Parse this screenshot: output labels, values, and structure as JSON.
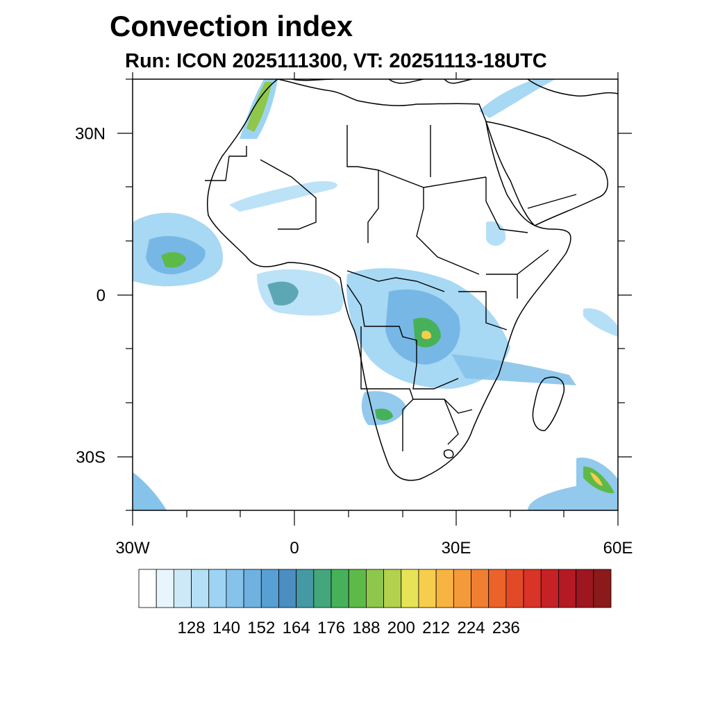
{
  "title": "Convection index",
  "subtitle": "Run: ICON 2025111300,  VT: 20251113-18UTC",
  "map": {
    "lon_range": [
      -30,
      60
    ],
    "lat_range": [
      -40,
      40
    ],
    "x_ticks": [
      {
        "lon": -30,
        "label": "30W"
      },
      {
        "lon": 0,
        "label": "0"
      },
      {
        "lon": 30,
        "label": "30E"
      },
      {
        "lon": 60,
        "label": "60E"
      }
    ],
    "y_ticks": [
      {
        "lat": 30,
        "label": "30N"
      },
      {
        "lat": 0,
        "label": "0"
      },
      {
        "lat": -30,
        "label": "30S"
      }
    ]
  },
  "colorbar": {
    "colors": [
      "#ffffff",
      "#e8f5fc",
      "#cde9f8",
      "#b5dff6",
      "#9dd4f3",
      "#86c3ea",
      "#6fb2e2",
      "#589fd4",
      "#4a8ec2",
      "#4599a3",
      "#44a67c",
      "#47b15a",
      "#5dba48",
      "#8ec74b",
      "#b3d14d",
      "#e6e357",
      "#f7cd4e",
      "#f8b443",
      "#f59a3a",
      "#f07f32",
      "#eb622a",
      "#e24a27",
      "#d93427",
      "#c62226",
      "#b31a23",
      "#9e1620",
      "#8b1a1a"
    ],
    "labels": [
      "128",
      "140",
      "152",
      "164",
      "176",
      "188",
      "200",
      "212",
      "224",
      "236"
    ]
  }
}
